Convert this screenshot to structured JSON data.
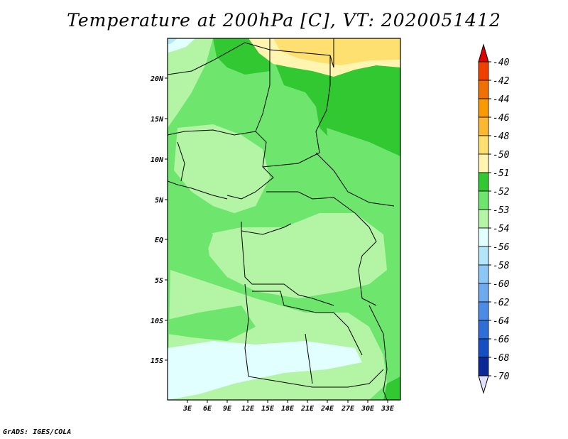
{
  "title": "Temperature at 200hPa [C], VT: 2020051412",
  "credit": "GrADS: IGES/COLA",
  "map": {
    "lat_labels": [
      "20N",
      "15N",
      "10N",
      "5N",
      "EQ",
      "5S",
      "10S",
      "15S"
    ],
    "lon_labels": [
      "3E",
      "6E",
      "9E",
      "12E",
      "15E",
      "18E",
      "21E",
      "24E",
      "27E",
      "30E",
      "33E"
    ]
  },
  "colorbar": {
    "levels": [
      "-40",
      "-42",
      "-44",
      "-46",
      "-48",
      "-50",
      "-51",
      "-52",
      "-53",
      "-54",
      "-56",
      "-58",
      "-60",
      "-62",
      "-64",
      "-66",
      "-68",
      "-70"
    ],
    "colors": [
      "#e00000",
      "#f04000",
      "#f07000",
      "#f89a00",
      "#fbb830",
      "#fde070",
      "#fff5b0",
      "#32c832",
      "#6ee66e",
      "#b4f5a5",
      "#e1ffff",
      "#b4e6fa",
      "#8cc8f5",
      "#6eaaf0",
      "#4b8ce6",
      "#2d6ed7",
      "#1450c3",
      "#0a2896",
      "#000060",
      "#e1e1ff"
    ]
  }
}
